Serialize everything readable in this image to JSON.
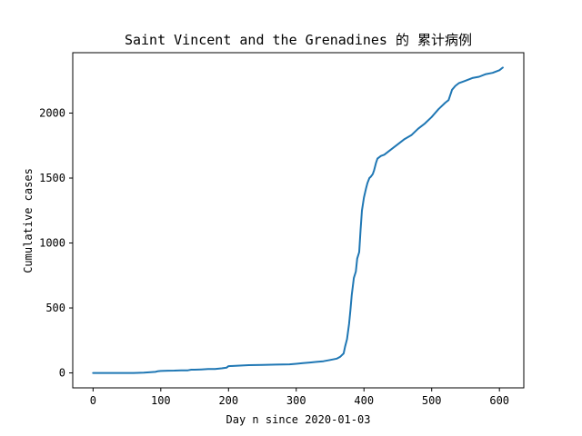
{
  "chart_data": {
    "type": "line",
    "title": "Saint Vincent and the Grenadines 的 累计病例",
    "xlabel": "Day n since 2020-01-03",
    "ylabel": "Cumulative cases",
    "xlim": [
      -30,
      636
    ],
    "ylim": [
      -115,
      2465
    ],
    "xticks": [
      0,
      100,
      200,
      300,
      400,
      500,
      600
    ],
    "yticks": [
      0,
      500,
      1000,
      1500,
      2000
    ],
    "grid": false,
    "series": [
      {
        "color": "#1f77b4",
        "x": [
          0,
          60,
          75,
          85,
          92,
          95,
          100,
          110,
          120,
          130,
          140,
          145,
          150,
          160,
          170,
          180,
          190,
          197,
          200,
          210,
          230,
          250,
          270,
          290,
          300,
          310,
          320,
          330,
          340,
          350,
          360,
          365,
          370,
          372,
          375,
          378,
          380,
          382,
          385,
          388,
          390,
          393,
          395,
          397,
          400,
          403,
          405,
          408,
          410,
          413,
          415,
          418,
          420,
          425,
          430,
          440,
          450,
          460,
          470,
          480,
          490,
          500,
          510,
          520,
          525,
          530,
          535,
          540,
          550,
          560,
          570,
          580,
          590,
          600,
          605
        ],
        "y": [
          0,
          0,
          2,
          5,
          8,
          12,
          15,
          17,
          18,
          20,
          20,
          25,
          25,
          27,
          30,
          30,
          35,
          40,
          52,
          55,
          60,
          62,
          64,
          66,
          70,
          75,
          80,
          85,
          90,
          100,
          110,
          125,
          150,
          200,
          260,
          380,
          480,
          600,
          730,
          780,
          880,
          930,
          1100,
          1250,
          1350,
          1420,
          1460,
          1500,
          1510,
          1530,
          1560,
          1620,
          1650,
          1670,
          1680,
          1720,
          1760,
          1800,
          1830,
          1880,
          1920,
          1970,
          2030,
          2080,
          2100,
          2180,
          2210,
          2230,
          2250,
          2270,
          2280,
          2300,
          2310,
          2330,
          2350
        ]
      }
    ]
  }
}
